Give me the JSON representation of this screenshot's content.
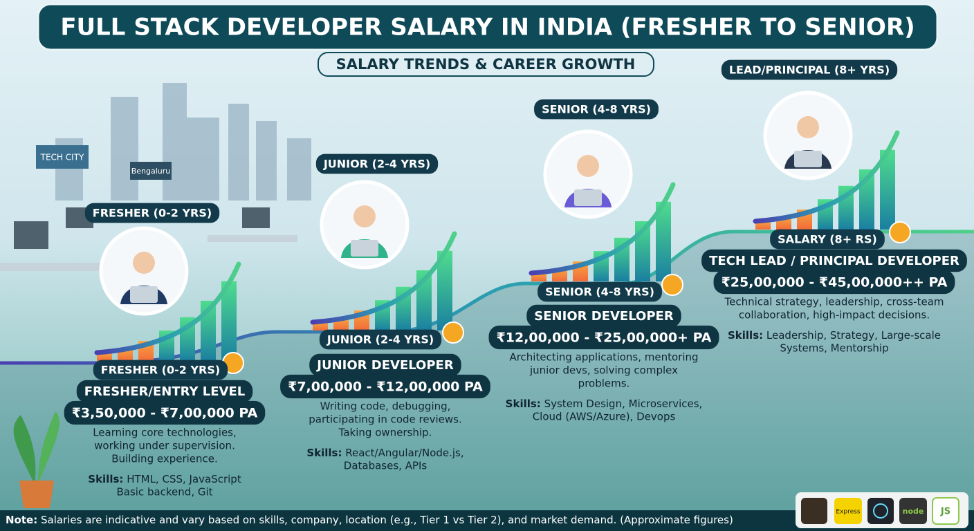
{
  "header": {
    "title": "FULL STACK DEVELOPER SALARY IN INDIA (FRESHER TO SENIOR)",
    "subtitle": "SALARY TRENDS & CAREER GROWTH"
  },
  "signs": {
    "city": "TECH CITY",
    "place": "Bengaluru"
  },
  "stages": [
    {
      "top_label": "FRESHER (0-2 YRS)",
      "badge": "FRESHER (0-2 YRS)",
      "role": "FRESHER/ENTRY LEVEL",
      "salary": "₹3,50,000 - ₹7,00,000 PA",
      "description": [
        "Learning core technologies,",
        "working under supervision.",
        "Building experience."
      ],
      "skills_label": "Skills:",
      "skills": [
        "HTML, CSS, JavaScript",
        "Basic backend, Git"
      ]
    },
    {
      "top_label": "JUNIOR (2-4 YRS)",
      "badge": "JUNIOR (2-4 YRS)",
      "role": "JUNIOR DEVELOPER",
      "salary": "₹7,00,000 - ₹12,00,000 PA",
      "description": [
        "Writing code, debugging,",
        "participating in code reviews.",
        "Taking ownership."
      ],
      "skills_label": "Skills:",
      "skills": [
        "React/Angular/Node.js,",
        "Databases, APIs"
      ]
    },
    {
      "top_label": "SENIOR (4-8 YRS)",
      "badge": "SENIOR (4-8 YRS)",
      "role": "SENIOR DEVELOPER",
      "salary": "₹12,00,000 - ₹25,00,000+ PA",
      "description": [
        "Architecting applications, mentoring",
        "junior devs, solving complex",
        "problems."
      ],
      "skills_label": "Skills:",
      "skills": [
        "System Design, Microservices,",
        "Cloud (AWS/Azure), Devops"
      ]
    },
    {
      "top_label": "LEAD/PRINCIPAL (8+ YRS)",
      "badge": "SALARY (8+ RS)",
      "role": "TECH LEAD / PRINCIPAL DEVELOPER",
      "salary": "₹25,00,000 - ₹45,00,000++ PA",
      "description": [
        "Technical strategy, leadership, cross-team",
        "collaboration, high-impact decisions."
      ],
      "skills_label": "Skills:",
      "skills": [
        "Leadership, Strategy, Large-scale",
        "Systems, Mentorship"
      ]
    }
  ],
  "footer": {
    "note_label": "Note:",
    "note": "Salaries are indicative and vary based on skills, company, location (e.g., Tier 1 vs Tier 2), and market demand. (Approximate figures)",
    "logos": [
      "Express",
      "node",
      "JS"
    ]
  }
}
